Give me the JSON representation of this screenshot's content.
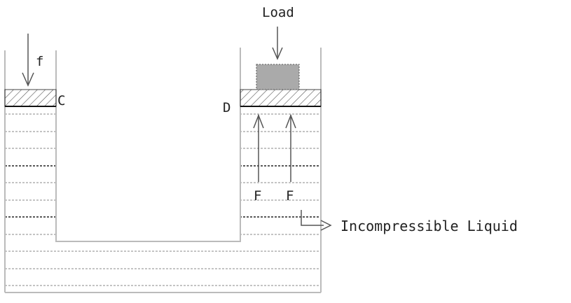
{
  "diagram": {
    "labels": {
      "load": "Load",
      "small_force": "f",
      "piston_c": "C",
      "piston_d": "D",
      "force_left": "F",
      "force_right": "F",
      "liquid": "Incompressible Liquid"
    },
    "colors": {
      "line": "#555555",
      "wall": "#bbbbbb",
      "liquid_line": "#888888",
      "liquid_line_dark": "#222222",
      "load_fill": "#aaaaaa",
      "hatch": "#444444"
    }
  }
}
